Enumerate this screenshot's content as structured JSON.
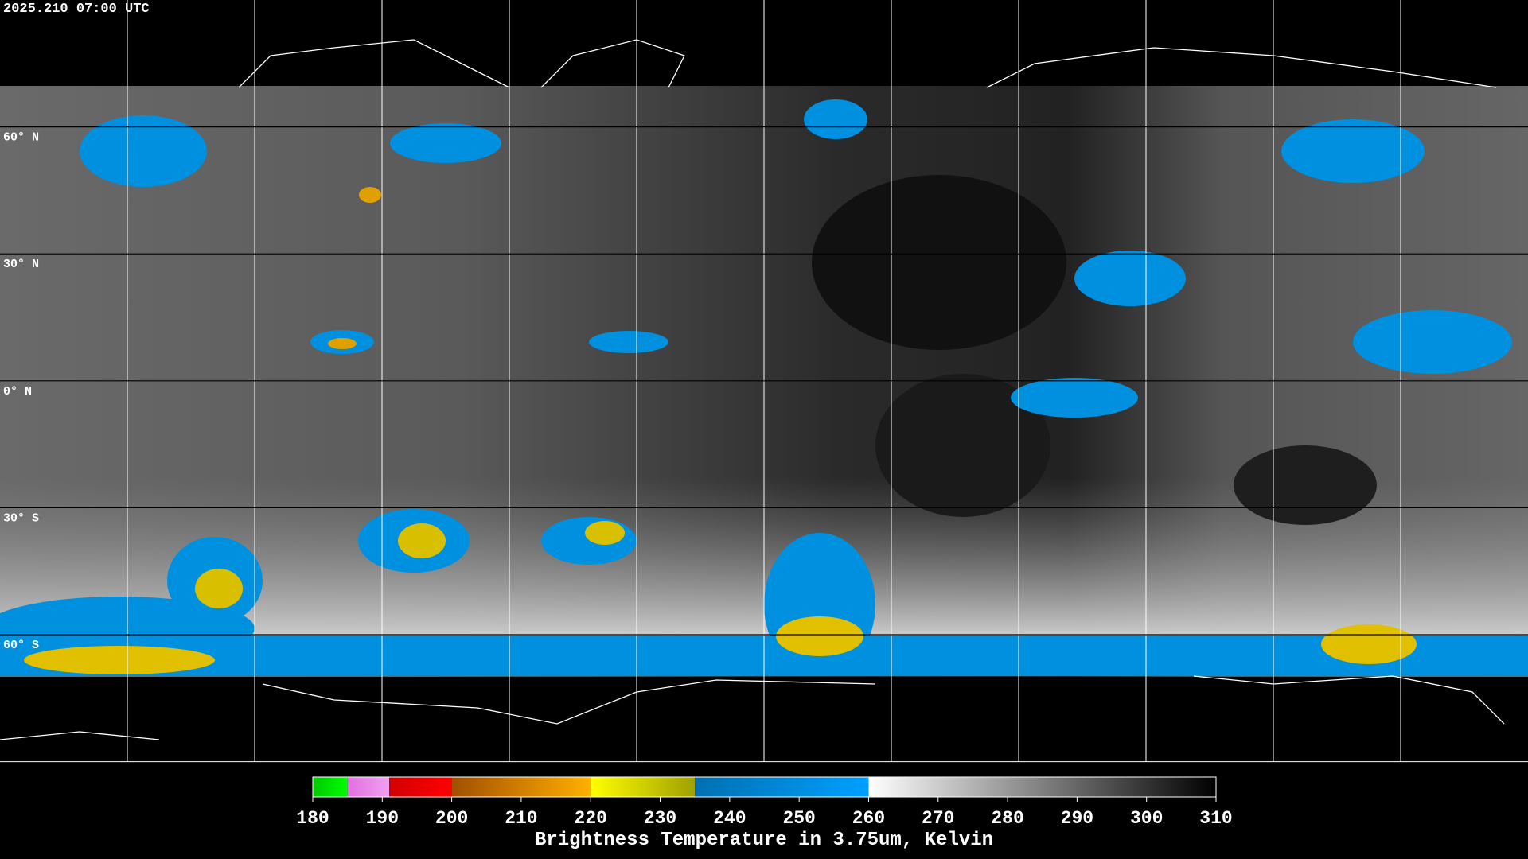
{
  "header": {
    "timestamp": "2025.210 07:00 UTC"
  },
  "map": {
    "lat_lines": [
      {
        "value": 60,
        "label": "60° N"
      },
      {
        "value": 30,
        "label": "30° N"
      },
      {
        "value": 0,
        "label": "0° N"
      },
      {
        "value": -30,
        "label": "30° S"
      },
      {
        "value": -60,
        "label": "60° S"
      }
    ],
    "lon_lines": [
      -150,
      -120,
      -90,
      -60,
      -30,
      0,
      30,
      60,
      90,
      120,
      150
    ]
  },
  "colorbar": {
    "range": [
      180,
      310
    ],
    "ticks": [
      180,
      190,
      200,
      210,
      220,
      230,
      240,
      250,
      260,
      270,
      280,
      290,
      300,
      310
    ],
    "segments": [
      {
        "from": 180,
        "to": 185,
        "colors": [
          "#00c800",
          "#00ff00"
        ]
      },
      {
        "from": 185,
        "to": 191,
        "colors": [
          "#e070e0",
          "#f0a0f0"
        ]
      },
      {
        "from": 191,
        "to": 200,
        "colors": [
          "#d00000",
          "#ff0000"
        ]
      },
      {
        "from": 200,
        "to": 220,
        "colors": [
          "#a05000",
          "#ffb000"
        ]
      },
      {
        "from": 220,
        "to": 235,
        "colors": [
          "#ffff00",
          "#a0a000"
        ]
      },
      {
        "from": 235,
        "to": 260,
        "colors": [
          "#0070b0",
          "#00a0ff"
        ]
      },
      {
        "from": 260,
        "to": 310,
        "colors": [
          "#ffffff",
          "#000000"
        ]
      }
    ],
    "label": "Brightness Temperature in 3.75um, Kelvin"
  }
}
